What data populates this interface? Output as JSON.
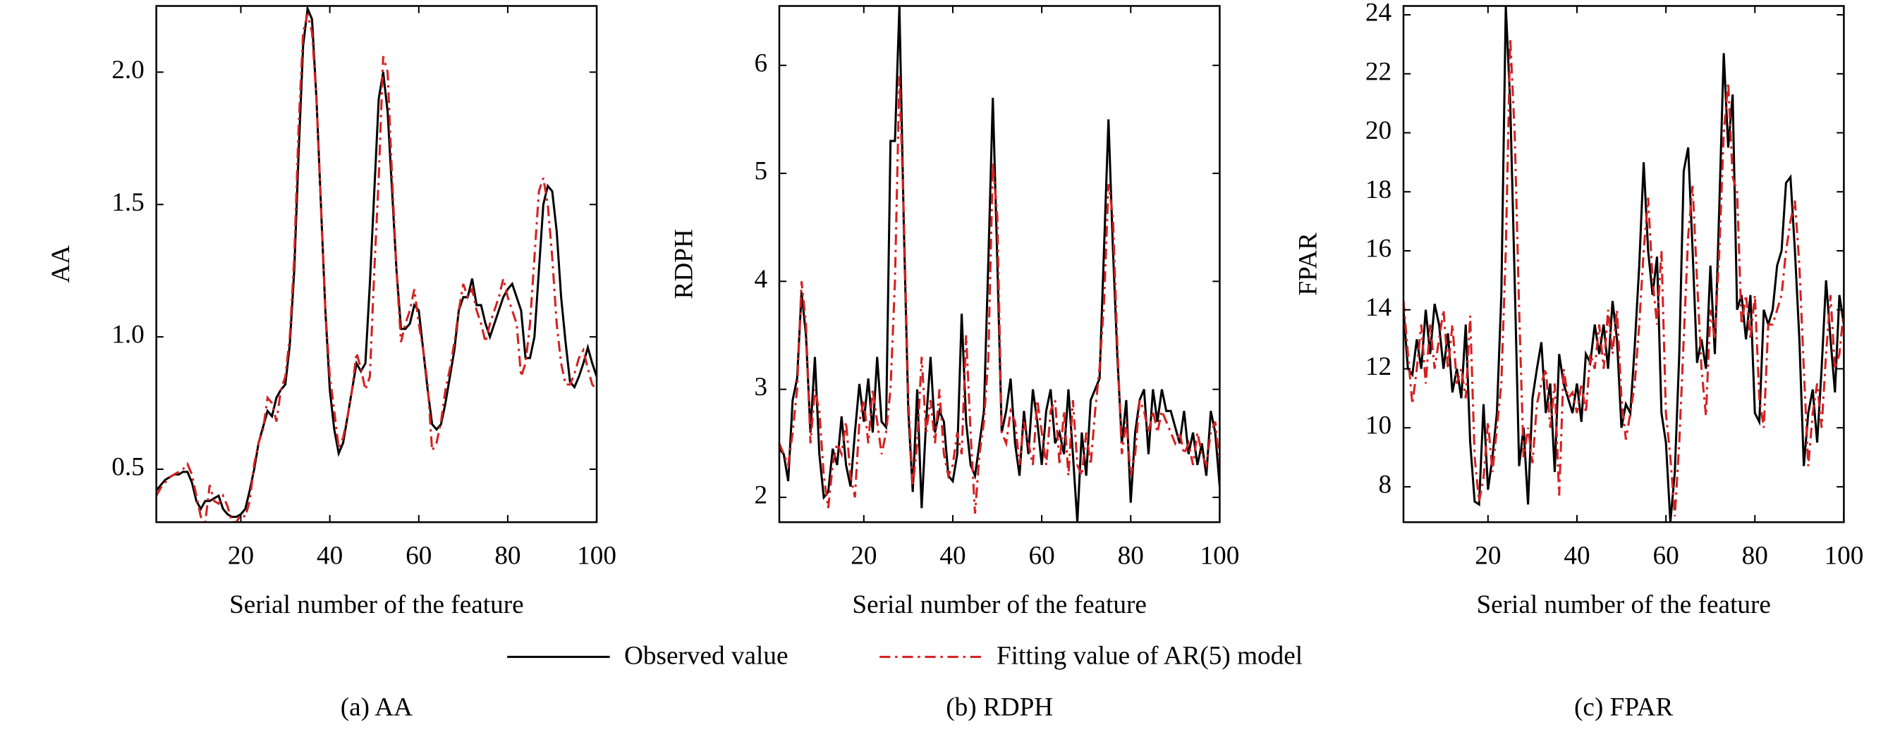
{
  "chart_data": [
    {
      "type": "line",
      "title": "(a) AA",
      "ylabel": "AA",
      "xlabel": "Serial number of the feature",
      "x": [
        1,
        2,
        3,
        4,
        5,
        6,
        7,
        8,
        9,
        10,
        11,
        12,
        13,
        14,
        15,
        16,
        17,
        18,
        19,
        20,
        21,
        22,
        23,
        24,
        25,
        26,
        27,
        28,
        29,
        30,
        31,
        32,
        33,
        34,
        35,
        36,
        37,
        38,
        39,
        40,
        41,
        42,
        43,
        44,
        45,
        46,
        47,
        48,
        49,
        50,
        51,
        52,
        53,
        54,
        55,
        56,
        57,
        58,
        59,
        60,
        61,
        62,
        63,
        64,
        65,
        66,
        67,
        68,
        69,
        70,
        71,
        72,
        73,
        74,
        75,
        76,
        77,
        78,
        79,
        80,
        81,
        82,
        83,
        84,
        85,
        86,
        87,
        88,
        89,
        90,
        91,
        92,
        93,
        94,
        95,
        96,
        97,
        98,
        99,
        100
      ],
      "xlim": [
        1,
        100
      ],
      "xticks": [
        20,
        40,
        60,
        80,
        100
      ],
      "ylim": [
        0.3,
        2.25
      ],
      "yticks": [
        0.5,
        {
          "value": 1,
          "label": "1.0"
        },
        1.5,
        {
          "value": 2,
          "label": "2.0"
        }
      ],
      "series": [
        {
          "name": "Observed value",
          "color": "#000000",
          "linestyle": "solid",
          "values": [
            0.42,
            0.44,
            0.46,
            0.47,
            0.48,
            0.48,
            0.49,
            0.49,
            0.45,
            0.38,
            0.35,
            0.38,
            0.38,
            0.39,
            0.4,
            0.35,
            0.33,
            0.32,
            0.32,
            0.33,
            0.35,
            0.42,
            0.5,
            0.6,
            0.66,
            0.72,
            0.7,
            0.77,
            0.8,
            0.82,
            0.97,
            1.25,
            1.7,
            2.1,
            2.24,
            2.2,
            1.9,
            1.5,
            1.1,
            0.8,
            0.65,
            0.56,
            0.6,
            0.7,
            0.8,
            0.9,
            0.87,
            0.9,
            1.2,
            1.55,
            1.9,
            2.0,
            1.85,
            1.55,
            1.25,
            1.03,
            1.03,
            1.05,
            1.12,
            1.1,
            0.95,
            0.8,
            0.67,
            0.65,
            0.67,
            0.75,
            0.85,
            0.95,
            1.1,
            1.15,
            1.15,
            1.22,
            1.12,
            1.12,
            1.05,
            1.0,
            1.05,
            1.1,
            1.15,
            1.18,
            1.2,
            1.15,
            1.1,
            0.92,
            0.92,
            1.0,
            1.25,
            1.5,
            1.57,
            1.55,
            1.4,
            1.15,
            0.98,
            0.83,
            0.81,
            0.85,
            0.9,
            0.96,
            0.9,
            0.85
          ]
        },
        {
          "name": "Fitting value of AR(5) model",
          "color": "#d62020",
          "linestyle": "dash-dot",
          "values": [
            0.4,
            0.43,
            0.45,
            0.47,
            0.48,
            0.49,
            0.5,
            0.52,
            0.48,
            0.4,
            0.32,
            0.3,
            0.44,
            0.38,
            0.37,
            0.4,
            0.36,
            0.3,
            0.3,
            0.33,
            0.32,
            0.38,
            0.52,
            0.6,
            0.65,
            0.77,
            0.75,
            0.68,
            0.8,
            0.85,
            1.0,
            1.3,
            1.8,
            2.15,
            2.22,
            2.15,
            1.9,
            1.5,
            1.1,
            0.85,
            0.72,
            0.58,
            0.62,
            0.7,
            0.8,
            0.94,
            0.88,
            0.8,
            0.85,
            1.25,
            1.6,
            2.06,
            2.0,
            1.6,
            1.25,
            0.98,
            1.05,
            1.1,
            1.18,
            1.05,
            0.95,
            0.82,
            0.57,
            0.6,
            0.68,
            0.8,
            0.88,
            0.98,
            1.1,
            1.2,
            1.15,
            1.18,
            1.1,
            1.05,
            0.98,
            1.05,
            1.1,
            1.15,
            1.22,
            1.15,
            1.1,
            1.05,
            0.85,
            0.9,
            1.05,
            1.3,
            1.55,
            1.6,
            1.5,
            1.3,
            1.05,
            0.9,
            0.82,
            0.82,
            0.86,
            0.92,
            0.95,
            0.88,
            0.82,
            0.8
          ]
        }
      ]
    },
    {
      "type": "line",
      "title": "(b) RDPH",
      "ylabel": "RDPH",
      "xlabel": "Serial number of the feature",
      "x": [
        1,
        2,
        3,
        4,
        5,
        6,
        7,
        8,
        9,
        10,
        11,
        12,
        13,
        14,
        15,
        16,
        17,
        18,
        19,
        20,
        21,
        22,
        23,
        24,
        25,
        26,
        27,
        28,
        29,
        30,
        31,
        32,
        33,
        34,
        35,
        36,
        37,
        38,
        39,
        40,
        41,
        42,
        43,
        44,
        45,
        46,
        47,
        48,
        49,
        50,
        51,
        52,
        53,
        54,
        55,
        56,
        57,
        58,
        59,
        60,
        61,
        62,
        63,
        64,
        65,
        66,
        67,
        68,
        69,
        70,
        71,
        72,
        73,
        74,
        75,
        76,
        77,
        78,
        79,
        80,
        81,
        82,
        83,
        84,
        85,
        86,
        87,
        88,
        89,
        90,
        91,
        92,
        93,
        94,
        95,
        96,
        97,
        98,
        99,
        100
      ],
      "xlim": [
        1,
        100
      ],
      "xticks": [
        20,
        40,
        60,
        80,
        100
      ],
      "ylim": [
        1.77,
        6.55
      ],
      "yticks": [
        2,
        3,
        4,
        5,
        6
      ],
      "series": [
        {
          "color": "#000000",
          "linestyle": "solid",
          "values": [
            2.45,
            2.4,
            2.15,
            2.9,
            3.1,
            3.9,
            3.5,
            2.6,
            3.3,
            2.4,
            2.0,
            2.05,
            2.45,
            2.3,
            2.75,
            2.3,
            2.1,
            2.6,
            3.05,
            2.7,
            3.1,
            2.6,
            3.3,
            2.7,
            2.65,
            5.3,
            5.3,
            6.55,
            4.5,
            2.8,
            2.05,
            3.0,
            1.9,
            2.7,
            3.3,
            2.6,
            2.8,
            2.7,
            2.2,
            2.15,
            2.4,
            3.7,
            2.7,
            2.3,
            2.2,
            2.5,
            2.8,
            4.2,
            5.7,
            4.2,
            2.6,
            2.8,
            3.1,
            2.5,
            2.2,
            2.8,
            2.4,
            3.0,
            2.7,
            2.3,
            2.8,
            3.0,
            2.5,
            2.6,
            2.4,
            3.0,
            2.4,
            1.77,
            2.6,
            2.2,
            2.9,
            3.0,
            3.1,
            4.3,
            5.5,
            4.3,
            3.3,
            2.5,
            2.9,
            1.95,
            2.6,
            2.9,
            3.0,
            2.4,
            3.0,
            2.7,
            3.0,
            2.8,
            2.8,
            2.65,
            2.5,
            2.8,
            2.4,
            2.6,
            2.3,
            2.5,
            2.2,
            2.8,
            2.6,
            2.1
          ]
        },
        {
          "color": "#d62020",
          "linestyle": "dash-dot",
          "values": [
            2.5,
            2.4,
            2.3,
            2.6,
            3.0,
            4.0,
            3.6,
            2.5,
            3.0,
            2.8,
            2.2,
            1.9,
            2.3,
            2.5,
            2.4,
            2.7,
            2.2,
            2.0,
            2.7,
            2.9,
            2.5,
            3.0,
            2.7,
            2.4,
            2.6,
            3.0,
            4.0,
            5.9,
            4.6,
            2.9,
            2.1,
            2.5,
            3.3,
            2.6,
            2.9,
            2.5,
            3.0,
            2.4,
            2.2,
            2.3,
            2.6,
            2.4,
            3.5,
            2.6,
            1.85,
            2.4,
            2.7,
            3.3,
            5.1,
            4.6,
            2.6,
            2.5,
            2.8,
            2.7,
            2.3,
            2.7,
            2.5,
            2.3,
            2.9,
            2.6,
            2.3,
            2.8,
            2.9,
            2.3,
            2.8,
            2.2,
            2.9,
            2.3,
            2.2,
            2.6,
            2.3,
            2.8,
            3.2,
            3.8,
            4.9,
            4.6,
            3.4,
            2.4,
            2.7,
            2.2,
            2.4,
            2.9,
            2.8,
            2.6,
            2.8,
            2.6,
            2.8,
            2.7,
            2.6,
            2.5,
            2.6,
            2.4,
            2.5,
            2.3,
            2.6,
            2.4,
            2.3,
            2.6,
            2.7,
            2.3
          ]
        }
      ]
    },
    {
      "type": "line",
      "title": "(c) FPAR",
      "ylabel": "FPAR",
      "xlabel": "Serial number of the feature",
      "x": [
        1,
        2,
        3,
        4,
        5,
        6,
        7,
        8,
        9,
        10,
        11,
        12,
        13,
        14,
        15,
        16,
        17,
        18,
        19,
        20,
        21,
        22,
        23,
        24,
        25,
        26,
        27,
        28,
        29,
        30,
        31,
        32,
        33,
        34,
        35,
        36,
        37,
        38,
        39,
        40,
        41,
        42,
        43,
        44,
        45,
        46,
        47,
        48,
        49,
        50,
        51,
        52,
        53,
        54,
        55,
        56,
        57,
        58,
        59,
        60,
        61,
        62,
        63,
        64,
        65,
        66,
        67,
        68,
        69,
        70,
        71,
        72,
        73,
        74,
        75,
        76,
        77,
        78,
        79,
        80,
        81,
        82,
        83,
        84,
        85,
        86,
        87,
        88,
        89,
        90,
        91,
        92,
        93,
        94,
        95,
        96,
        97,
        98,
        99,
        100
      ],
      "xlim": [
        1,
        100
      ],
      "xticks": [
        20,
        40,
        60,
        80,
        100
      ],
      "ylim": [
        6.8,
        24.3
      ],
      "yticks": [
        8,
        10,
        12,
        14,
        16,
        18,
        20,
        22,
        24
      ],
      "series": [
        {
          "color": "#000000",
          "linestyle": "solid",
          "values": [
            14.0,
            12.0,
            11.8,
            13.0,
            12.0,
            14.0,
            12.5,
            14.2,
            13.5,
            12.0,
            13.2,
            11.2,
            12.0,
            11.0,
            13.5,
            9.5,
            7.5,
            7.4,
            10.8,
            7.9,
            9.0,
            10.5,
            14.5,
            24.3,
            21.0,
            15.0,
            8.7,
            10.0,
            7.4,
            11.0,
            12.0,
            12.9,
            10.5,
            11.5,
            8.5,
            12.5,
            11.5,
            11.0,
            10.5,
            11.5,
            10.2,
            12.5,
            12.2,
            13.5,
            12.5,
            13.5,
            12.0,
            14.3,
            13.0,
            10.0,
            10.8,
            10.5,
            12.8,
            15.5,
            19.0,
            16.0,
            14.5,
            15.8,
            10.5,
            9.5,
            6.8,
            8.5,
            12.5,
            18.7,
            19.5,
            16.0,
            12.2,
            13.0,
            12.0,
            15.5,
            12.5,
            17.5,
            22.7,
            19.5,
            21.3,
            14.0,
            14.5,
            13.0,
            14.5,
            10.5,
            10.2,
            14.0,
            13.5,
            14.0,
            15.5,
            16.0,
            18.3,
            18.5,
            16.0,
            13.0,
            8.7,
            10.5,
            11.3,
            9.5,
            12.0,
            15.0,
            13.0,
            11.2,
            14.5,
            13.5
          ]
        },
        {
          "color": "#d62020",
          "linestyle": "dash-dot",
          "values": [
            14.3,
            12.5,
            10.8,
            12.0,
            13.5,
            11.5,
            13.5,
            12.0,
            13.0,
            14.0,
            12.0,
            13.5,
            11.5,
            12.0,
            11.0,
            13.8,
            9.0,
            7.5,
            8.3,
            10.2,
            8.5,
            10.0,
            11.5,
            16.0,
            23.2,
            20.0,
            14.0,
            9.0,
            10.0,
            8.8,
            10.8,
            11.5,
            12.0,
            10.0,
            11.5,
            7.7,
            12.0,
            11.0,
            11.2,
            10.5,
            11.5,
            10.5,
            12.5,
            12.0,
            13.5,
            12.0,
            14.0,
            12.5,
            14.0,
            11.0,
            9.6,
            10.5,
            11.5,
            13.5,
            16.0,
            17.8,
            15.0,
            13.5,
            16.0,
            10.5,
            9.0,
            7.0,
            9.5,
            13.0,
            16.5,
            18.2,
            15.0,
            12.0,
            10.4,
            14.0,
            13.0,
            16.0,
            20.0,
            21.7,
            18.5,
            18.0,
            13.5,
            14.5,
            13.0,
            14.5,
            11.0,
            10.0,
            13.5,
            13.5,
            14.0,
            14.5,
            16.0,
            17.0,
            17.7,
            15.5,
            12.0,
            8.7,
            10.5,
            11.5,
            10.0,
            12.5,
            14.5,
            12.0,
            12.5,
            14.0
          ]
        }
      ]
    }
  ]
}
